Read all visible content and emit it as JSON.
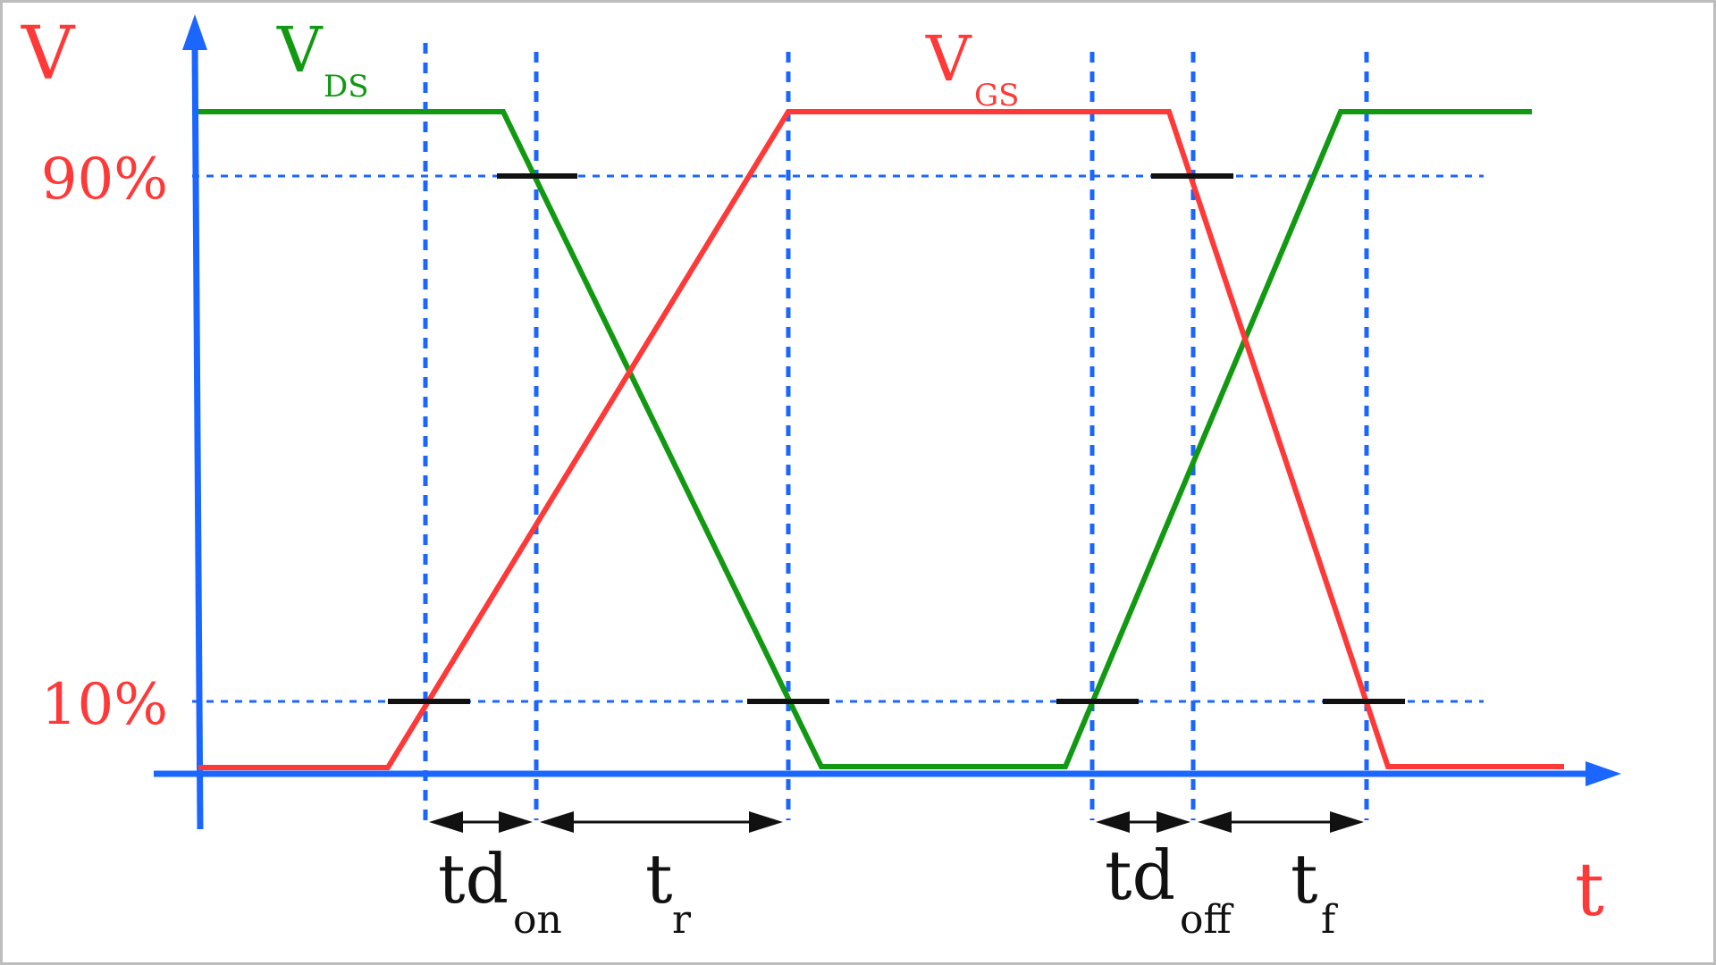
{
  "diagram": {
    "y_axis_label": "V",
    "x_axis_label": "t",
    "level_labels": {
      "high": "90%",
      "low": "10%"
    },
    "signals": {
      "vds": {
        "main": "V",
        "sub": "DS",
        "color": "#119911"
      },
      "vgs": {
        "main": "V",
        "sub": "GS",
        "color": "#ff3838"
      }
    },
    "intervals": [
      {
        "main": "td",
        "sub": "on"
      },
      {
        "main": "t",
        "sub": "r"
      },
      {
        "main": "td",
        "sub": "off"
      },
      {
        "main": "t",
        "sub": "f"
      }
    ]
  }
}
